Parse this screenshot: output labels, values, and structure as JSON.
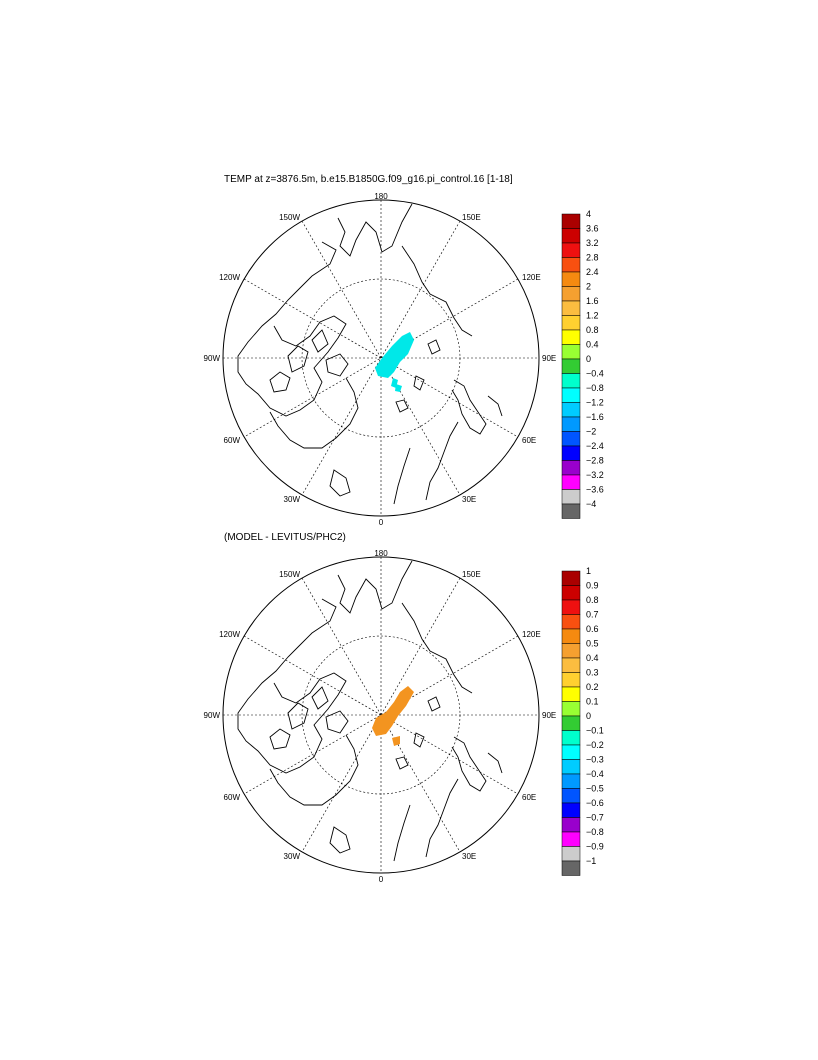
{
  "panel_top": {
    "title": "TEMP at z=3876.5m, b.e15.B1850G.f09_g16.pi_control.16 [1-18]",
    "lon_labels": {
      "l180": "180",
      "l150e": "150E",
      "l120e": "120E",
      "l90e": "90E",
      "l60e": "60E",
      "l30e": "30E",
      "l0": "0",
      "l30w": "30W",
      "l60w": "60W",
      "l90w": "90W",
      "l120w": "120W",
      "l150w": "150W"
    },
    "colorbar_labels": [
      "4",
      "3.6",
      "3.2",
      "2.8",
      "2.4",
      "2",
      "1.6",
      "1.2",
      "0.8",
      "0.4",
      "0",
      "−0.4",
      "−0.8",
      "−1.2",
      "−1.6",
      "−2",
      "−2.4",
      "−2.8",
      "−3.2",
      "−3.6",
      "−4"
    ],
    "anomaly_color": "#00e8e8"
  },
  "panel_bottom": {
    "title": "(MODEL - LEVITUS/PHC2)",
    "lon_labels": {
      "l180": "180",
      "l150e": "150E",
      "l120e": "120E",
      "l90e": "90E",
      "l60e": "60E",
      "l30e": "30E",
      "l0": "0",
      "l30w": "30W",
      "l60w": "60W",
      "l90w": "90W",
      "l120w": "120W",
      "l150w": "150W"
    },
    "colorbar_labels": [
      "1",
      "0.9",
      "0.8",
      "0.7",
      "0.6",
      "0.5",
      "0.4",
      "0.3",
      "0.2",
      "0.1",
      "0",
      "−0.1",
      "−0.2",
      "−0.3",
      "−0.4",
      "−0.5",
      "−0.6",
      "−0.7",
      "−0.8",
      "−0.9",
      "−1"
    ],
    "anomaly_color": "#f39420"
  },
  "colorbar_colors": [
    "#aa0000",
    "#cc0000",
    "#ee1010",
    "#f85010",
    "#f58a10",
    "#f5a030",
    "#fbbd40",
    "#ffd030",
    "#ffff00",
    "#99ff33",
    "#33cc33",
    "#00ffcc",
    "#00ffff",
    "#00ccff",
    "#0099ff",
    "#0055ff",
    "#0000ff",
    "#9900cc",
    "#ff00ff",
    "#cccccc",
    "#666666"
  ]
}
